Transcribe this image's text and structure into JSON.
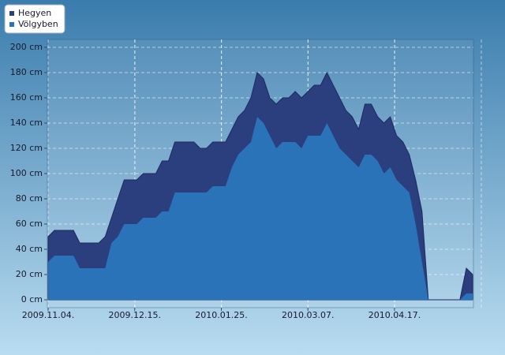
{
  "chart_data": {
    "type": "area",
    "x": [
      "2009-11-04",
      "2009-11-07",
      "2009-11-10",
      "2009-11-13",
      "2009-11-16",
      "2009-11-19",
      "2009-11-22",
      "2009-11-25",
      "2009-11-28",
      "2009-12-01",
      "2009-12-04",
      "2009-12-07",
      "2009-12-10",
      "2009-12-13",
      "2009-12-16",
      "2009-12-19",
      "2009-12-22",
      "2009-12-25",
      "2009-12-28",
      "2009-12-31",
      "2010-01-03",
      "2010-01-06",
      "2010-01-09",
      "2010-01-12",
      "2010-01-15",
      "2010-01-18",
      "2010-01-21",
      "2010-01-24",
      "2010-01-27",
      "2010-01-30",
      "2010-02-02",
      "2010-02-05",
      "2010-02-08",
      "2010-02-11",
      "2010-02-14",
      "2010-02-17",
      "2010-02-20",
      "2010-02-23",
      "2010-02-26",
      "2010-03-01",
      "2010-03-04",
      "2010-03-07",
      "2010-03-10",
      "2010-03-13",
      "2010-03-16",
      "2010-03-19",
      "2010-03-22",
      "2010-03-25",
      "2010-03-28",
      "2010-03-31",
      "2010-04-03",
      "2010-04-06",
      "2010-04-09",
      "2010-04-12",
      "2010-04-15",
      "2010-04-18",
      "2010-04-21",
      "2010-04-24",
      "2010-04-27",
      "2010-04-30",
      "2010-05-03",
      "2010-05-06",
      "2010-05-09",
      "2010-05-12",
      "2010-05-15",
      "2010-05-18",
      "2010-05-21",
      "2010-05-24"
    ],
    "series": [
      {
        "name": "Hegyen",
        "color": "#2b3f7e",
        "values": [
          50,
          55,
          55,
          55,
          55,
          45,
          45,
          45,
          45,
          50,
          65,
          80,
          95,
          95,
          95,
          100,
          100,
          100,
          110,
          110,
          125,
          125,
          125,
          125,
          120,
          120,
          125,
          125,
          125,
          135,
          145,
          150,
          160,
          180,
          175,
          160,
          155,
          160,
          160,
          165,
          160,
          165,
          170,
          170,
          180,
          170,
          160,
          150,
          145,
          135,
          155,
          155,
          145,
          140,
          145,
          130,
          125,
          115,
          95,
          70,
          0,
          0,
          0,
          0,
          0,
          0,
          25,
          20
        ]
      },
      {
        "name": "Völgyben",
        "color": "#2a73b8",
        "values": [
          30,
          35,
          35,
          35,
          35,
          25,
          25,
          25,
          25,
          25,
          45,
          50,
          60,
          60,
          60,
          65,
          65,
          65,
          70,
          70,
          85,
          85,
          85,
          85,
          85,
          85,
          90,
          90,
          90,
          105,
          115,
          120,
          125,
          145,
          140,
          130,
          120,
          125,
          125,
          125,
          120,
          130,
          130,
          130,
          140,
          130,
          120,
          115,
          110,
          105,
          115,
          115,
          110,
          100,
          105,
          95,
          90,
          85,
          60,
          30,
          0,
          0,
          0,
          0,
          0,
          0,
          5,
          5
        ]
      }
    ],
    "xlim": [
      "2009-11-04",
      "2010-05-24"
    ],
    "xticks": [
      {
        "value": "2009-11-04",
        "label": "2009.11.04."
      },
      {
        "value": "2009-12-15",
        "label": "2009.12.15."
      },
      {
        "value": "2010-01-25",
        "label": "2010.01.25."
      },
      {
        "value": "2010-03-07",
        "label": "2010.03.07."
      },
      {
        "value": "2010-04-17",
        "label": "2010.04.17."
      }
    ],
    "ylim": [
      0,
      200
    ],
    "yticks": [
      {
        "value": 0,
        "label": "0 cm"
      },
      {
        "value": 20,
        "label": "20 cm"
      },
      {
        "value": 40,
        "label": "40 cm"
      },
      {
        "value": 60,
        "label": "60 cm"
      },
      {
        "value": 80,
        "label": "80 cm"
      },
      {
        "value": 100,
        "label": "100 cm"
      },
      {
        "value": 120,
        "label": "120 cm"
      },
      {
        "value": 140,
        "label": "140 cm"
      },
      {
        "value": 160,
        "label": "160 cm"
      },
      {
        "value": 180,
        "label": "180 cm"
      },
      {
        "value": 200,
        "label": "200 cm"
      }
    ],
    "grid": true
  }
}
